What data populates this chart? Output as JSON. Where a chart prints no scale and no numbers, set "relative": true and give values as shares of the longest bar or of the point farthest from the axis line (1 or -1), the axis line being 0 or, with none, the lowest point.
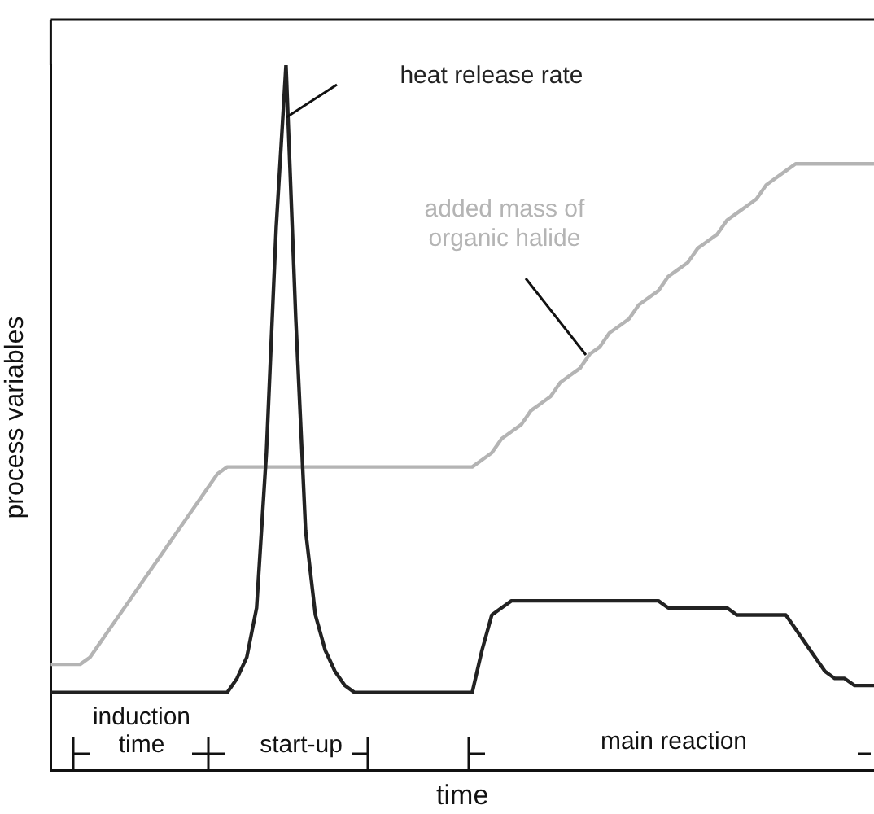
{
  "chart_data": {
    "type": "line",
    "relative": true,
    "xlabel": "time",
    "ylabel": "process variables",
    "marker": "none",
    "line_style": "solid",
    "categories": [
      null,
      null,
      null,
      null,
      null,
      null,
      null,
      null,
      null,
      null,
      null,
      null,
      null,
      null,
      null,
      null,
      null,
      null,
      null,
      null,
      null,
      null,
      null,
      null,
      null,
      null,
      null,
      null,
      null,
      null,
      null,
      null,
      null,
      null,
      null,
      null,
      null,
      null,
      null,
      null,
      null,
      null,
      null,
      null,
      null,
      null,
      null,
      null,
      null,
      null,
      null,
      null,
      null,
      null,
      null,
      null,
      null,
      null,
      null,
      null,
      null,
      null,
      null,
      null,
      null,
      null,
      null,
      null,
      null,
      null,
      null,
      null,
      null,
      null,
      null,
      null,
      null,
      null,
      null,
      null,
      null,
      null,
      null,
      null,
      null
    ],
    "series": [
      {
        "name": "heat release rate",
        "color": "#222222",
        "values": [
          0.11,
          0.11,
          0.11,
          0.11,
          0.11,
          0.11,
          0.11,
          0.11,
          0.11,
          0.11,
          0.11,
          0.11,
          0.11,
          0.11,
          0.11,
          0.11,
          0.11,
          0.11,
          0.11,
          0.13,
          0.16,
          0.23,
          0.45,
          0.77,
          1,
          0.64,
          0.34,
          0.22,
          0.17,
          0.14,
          0.12,
          0.11,
          0.11,
          0.11,
          0.11,
          0.11,
          0.11,
          0.11,
          0.11,
          0.11,
          0.11,
          0.11,
          0.11,
          0.11,
          0.17,
          0.22,
          0.23,
          0.24,
          0.24,
          0.24,
          0.24,
          0.24,
          0.24,
          0.24,
          0.24,
          0.24,
          0.24,
          0.24,
          0.24,
          0.24,
          0.24,
          0.24,
          0.24,
          0.23,
          0.23,
          0.23,
          0.23,
          0.23,
          0.23,
          0.23,
          0.22,
          0.22,
          0.22,
          0.22,
          0.22,
          0.22,
          0.2,
          0.18,
          0.16,
          0.14,
          0.13,
          0.13,
          0.12,
          0.12,
          0.12
        ]
      },
      {
        "name": "added mass of organic halide",
        "color": "#b4b4b4",
        "values": [
          0.15,
          0.15,
          0.15,
          0.15,
          0.16,
          0.18,
          0.2,
          0.22,
          0.24,
          0.26,
          0.28,
          0.3,
          0.32,
          0.34,
          0.36,
          0.38,
          0.4,
          0.42,
          0.43,
          0.43,
          0.43,
          0.43,
          0.43,
          0.43,
          0.43,
          0.43,
          0.43,
          0.43,
          0.43,
          0.43,
          0.43,
          0.43,
          0.43,
          0.43,
          0.43,
          0.43,
          0.43,
          0.43,
          0.43,
          0.43,
          0.43,
          0.43,
          0.43,
          0.43,
          0.44,
          0.45,
          0.47,
          0.48,
          0.49,
          0.51,
          0.52,
          0.53,
          0.55,
          0.56,
          0.57,
          0.59,
          0.6,
          0.62,
          0.63,
          0.64,
          0.66,
          0.67,
          0.68,
          0.7,
          0.71,
          0.72,
          0.74,
          0.75,
          0.76,
          0.78,
          0.79,
          0.8,
          0.81,
          0.83,
          0.84,
          0.85,
          0.86,
          0.86,
          0.86,
          0.86,
          0.86,
          0.86,
          0.86,
          0.86,
          0.86
        ]
      }
    ],
    "annotations": [
      "induction time",
      "start-up",
      "main reaction"
    ]
  }
}
